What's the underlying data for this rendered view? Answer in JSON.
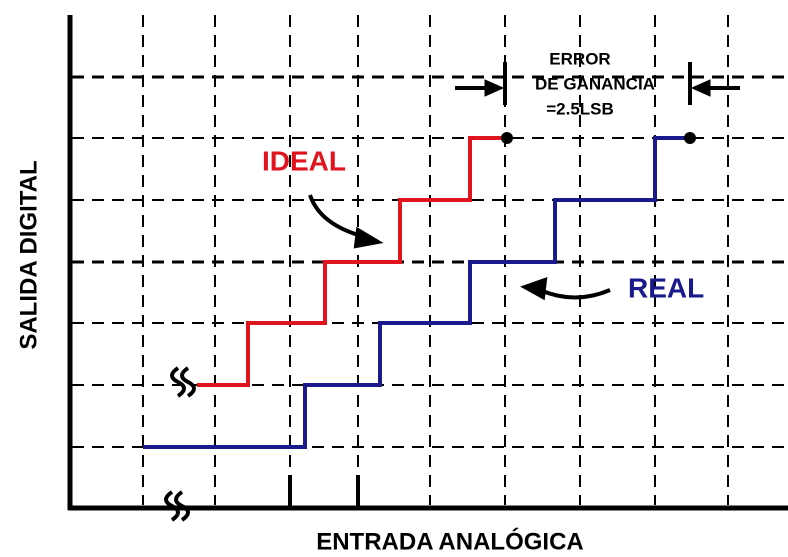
{
  "annotation": {
    "lines": [
      "ERROR",
      "DE GANANCIA",
      "=2.5LSB"
    ]
  },
  "curves": {
    "ideal": "IDEAL",
    "real": "REAL"
  },
  "axes": {
    "y": "SALIDA DIGITAL",
    "x": "ENTRADA ANALÓGICA"
  }
}
